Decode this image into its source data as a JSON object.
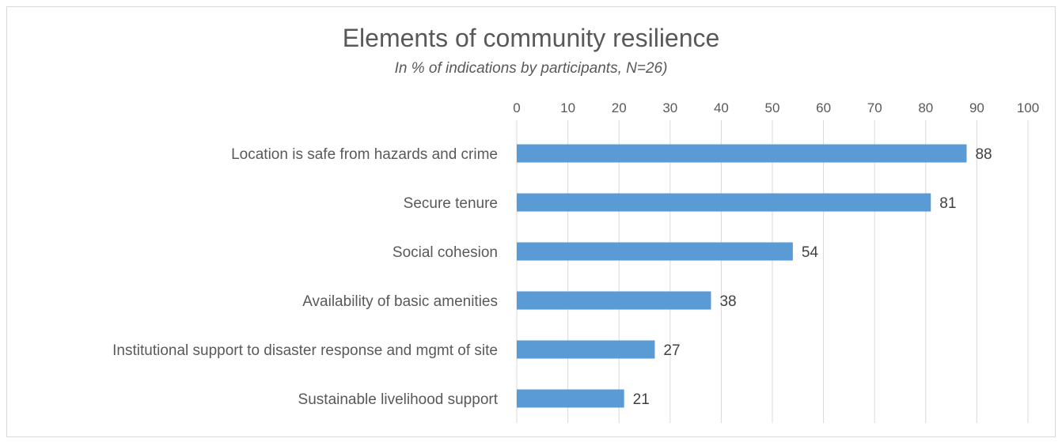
{
  "chart_data": {
    "type": "bar",
    "orientation": "horizontal",
    "title": "Elements of community resilience",
    "subtitle": "In % of indications by participants, N=26)",
    "categories": [
      "Location is safe from hazards and crime",
      "Secure tenure",
      "Social cohesion",
      "Availability of basic amenities",
      "Institutional support to disaster response and mgmt of site",
      "Sustainable livelihood support"
    ],
    "values": [
      88,
      81,
      54,
      38,
      27,
      21
    ],
    "xlim": [
      0,
      100
    ],
    "xticks": [
      "0",
      "10",
      "20",
      "30",
      "40",
      "50",
      "60",
      "70",
      "80",
      "90",
      "100"
    ],
    "x_axis_position": "top",
    "grid": true,
    "bar_color": "#5b9bd5",
    "gridline_color": "#d9d9d9",
    "data_labels": true
  }
}
